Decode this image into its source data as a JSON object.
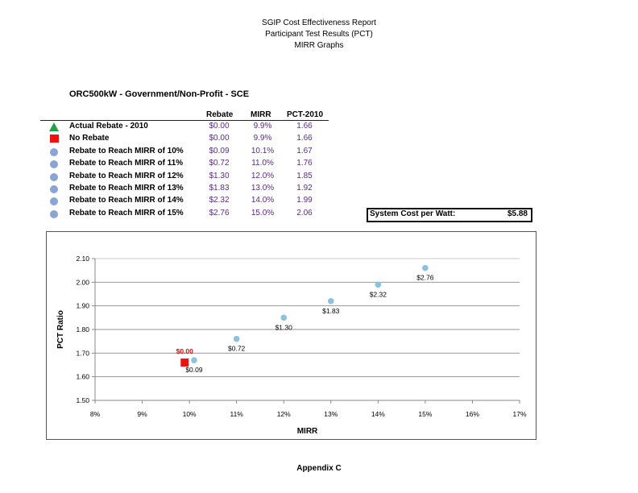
{
  "header": {
    "line1": "SGIP Cost Effectiveness Report",
    "line2": "Participant Test Results (PCT)",
    "line3": "MIRR Graphs"
  },
  "subtitle": "ORC500kW  - Government/Non-Profit - SCE",
  "table": {
    "columns": [
      "Rebate",
      "MIRR",
      "PCT-2010"
    ],
    "rows": [
      {
        "marker": "triangle",
        "label": "Actual Rebate - 2010",
        "rebate": "$0.00",
        "mirr": "9.9%",
        "pct": "1.66"
      },
      {
        "marker": "square",
        "label": "No Rebate",
        "rebate": "$0.00",
        "mirr": "9.9%",
        "pct": "1.66"
      },
      {
        "marker": "circle",
        "label": "Rebate to Reach MIRR of 10%",
        "rebate": "$0.09",
        "mirr": "10.1%",
        "pct": "1.67"
      },
      {
        "marker": "circle",
        "label": "Rebate to Reach MIRR of 11%",
        "rebate": "$0.72",
        "mirr": "11.0%",
        "pct": "1.76"
      },
      {
        "marker": "circle",
        "label": "Rebate to Reach MIRR of 12%",
        "rebate": "$1.30",
        "mirr": "12.0%",
        "pct": "1.85"
      },
      {
        "marker": "circle",
        "label": "Rebate to Reach MIRR of 13%",
        "rebate": "$1.83",
        "mirr": "13.0%",
        "pct": "1.92"
      },
      {
        "marker": "circle",
        "label": "Rebate to Reach MIRR of 14%",
        "rebate": "$2.32",
        "mirr": "14.0%",
        "pct": "1.99"
      },
      {
        "marker": "circle",
        "label": "Rebate to Reach MIRR of 15%",
        "rebate": "$2.76",
        "mirr": "15.0%",
        "pct": "2.06"
      }
    ]
  },
  "system_cost": {
    "label": "System Cost per Watt:",
    "value": "$5.88"
  },
  "colors": {
    "triangle": "#22a04a",
    "square": "#ee1111",
    "circle_legend": "#8aa4d4",
    "circle_chart": "#8cc3da",
    "value_text": "#5b2a86",
    "red_label": "#cc1111"
  },
  "chart_data": {
    "type": "scatter",
    "title": "",
    "xlabel": "MIRR",
    "ylabel": "PCT Ratio",
    "xlim": [
      8,
      17
    ],
    "ylim": [
      1.5,
      2.1
    ],
    "x_ticks": [
      "8%",
      "9%",
      "10%",
      "11%",
      "12%",
      "13%",
      "14%",
      "15%",
      "16%",
      "17%"
    ],
    "y_ticks": [
      "1.50",
      "1.60",
      "1.70",
      "1.80",
      "1.90",
      "2.00",
      "2.10"
    ],
    "grid": "horizontal",
    "legend": "none",
    "series": [
      {
        "name": "Actual Rebate - 2010",
        "marker": "triangle",
        "points": [
          {
            "x": 9.9,
            "y": 1.66,
            "label": "$0.00"
          }
        ]
      },
      {
        "name": "No Rebate",
        "marker": "square",
        "points": [
          {
            "x": 9.9,
            "y": 1.66,
            "label": "$0.00"
          }
        ]
      },
      {
        "name": "Rebate to Reach MIRR",
        "marker": "circle",
        "points": [
          {
            "x": 10.1,
            "y": 1.67,
            "label": "$0.09"
          },
          {
            "x": 11.0,
            "y": 1.76,
            "label": "$0.72"
          },
          {
            "x": 12.0,
            "y": 1.85,
            "label": "$1.30"
          },
          {
            "x": 13.0,
            "y": 1.92,
            "label": "$1.83"
          },
          {
            "x": 14.0,
            "y": 1.99,
            "label": "$2.32"
          },
          {
            "x": 15.0,
            "y": 2.06,
            "label": "$2.76"
          }
        ]
      }
    ]
  },
  "footer": "Appendix C"
}
